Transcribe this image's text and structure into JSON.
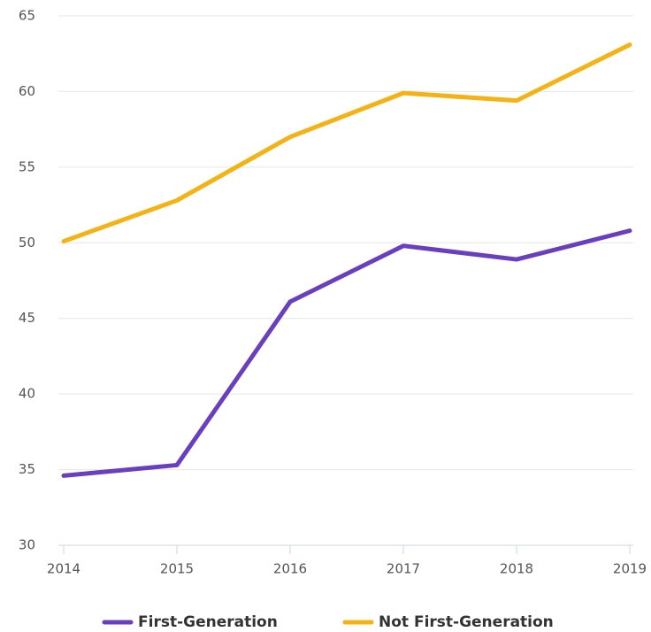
{
  "chart_data": {
    "type": "line",
    "x": [
      2014,
      2015,
      2016,
      2017,
      2018,
      2019
    ],
    "xlim": [
      2014,
      2019
    ],
    "xticks": [
      2014,
      2015,
      2016,
      2017,
      2018,
      2019
    ],
    "ylim": [
      30,
      65
    ],
    "yticks": [
      30,
      35,
      40,
      45,
      50,
      55,
      60,
      65
    ],
    "grid": true,
    "legend": "bottom",
    "series": [
      {
        "name": "First-Generation",
        "color": "#6a3fbf",
        "values": [
          34.6,
          35.3,
          46.1,
          49.8,
          48.9,
          50.8
        ]
      },
      {
        "name": "Not First-Generation",
        "color": "#f4b214",
        "values": [
          50.1,
          52.8,
          57.0,
          59.9,
          59.4,
          63.1
        ]
      }
    ]
  }
}
